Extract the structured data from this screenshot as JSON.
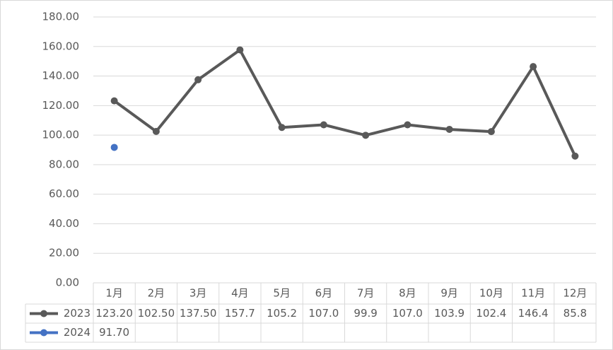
{
  "chart_data": {
    "type": "line",
    "categories": [
      "1月",
      "2月",
      "3月",
      "4月",
      "5月",
      "6月",
      "7月",
      "8月",
      "9月",
      "10月",
      "11月",
      "12月"
    ],
    "series": [
      {
        "name": "2023",
        "color": "#595959",
        "values": [
          123.2,
          102.5,
          137.5,
          157.7,
          105.2,
          107.0,
          99.9,
          107.0,
          103.9,
          102.4,
          146.4,
          85.8
        ],
        "value_labels": [
          "123.20",
          "102.50",
          "137.50",
          "157.7",
          "105.2",
          "107.0",
          "99.9",
          "107.0",
          "103.9",
          "102.4",
          "146.4",
          "85.8"
        ]
      },
      {
        "name": "2024",
        "color": "#4472c4",
        "values": [
          91.7,
          null,
          null,
          null,
          null,
          null,
          null,
          null,
          null,
          null,
          null,
          null
        ],
        "value_labels": [
          "91.70",
          null,
          null,
          null,
          null,
          null,
          null,
          null,
          null,
          null,
          null,
          null
        ]
      }
    ],
    "ylim": [
      0,
      180
    ],
    "yticks": [
      {
        "value": 0,
        "label": "0.00"
      },
      {
        "value": 20,
        "label": "20.00"
      },
      {
        "value": 40,
        "label": "40.00"
      },
      {
        "value": 60,
        "label": "60.00"
      },
      {
        "value": 80,
        "label": "80.00"
      },
      {
        "value": 100,
        "label": "100.00"
      },
      {
        "value": 120,
        "label": "120.00"
      },
      {
        "value": 140,
        "label": "140.00"
      },
      {
        "value": 160,
        "label": "160.00"
      },
      {
        "value": 180,
        "label": "180.00"
      }
    ],
    "grid": true
  }
}
